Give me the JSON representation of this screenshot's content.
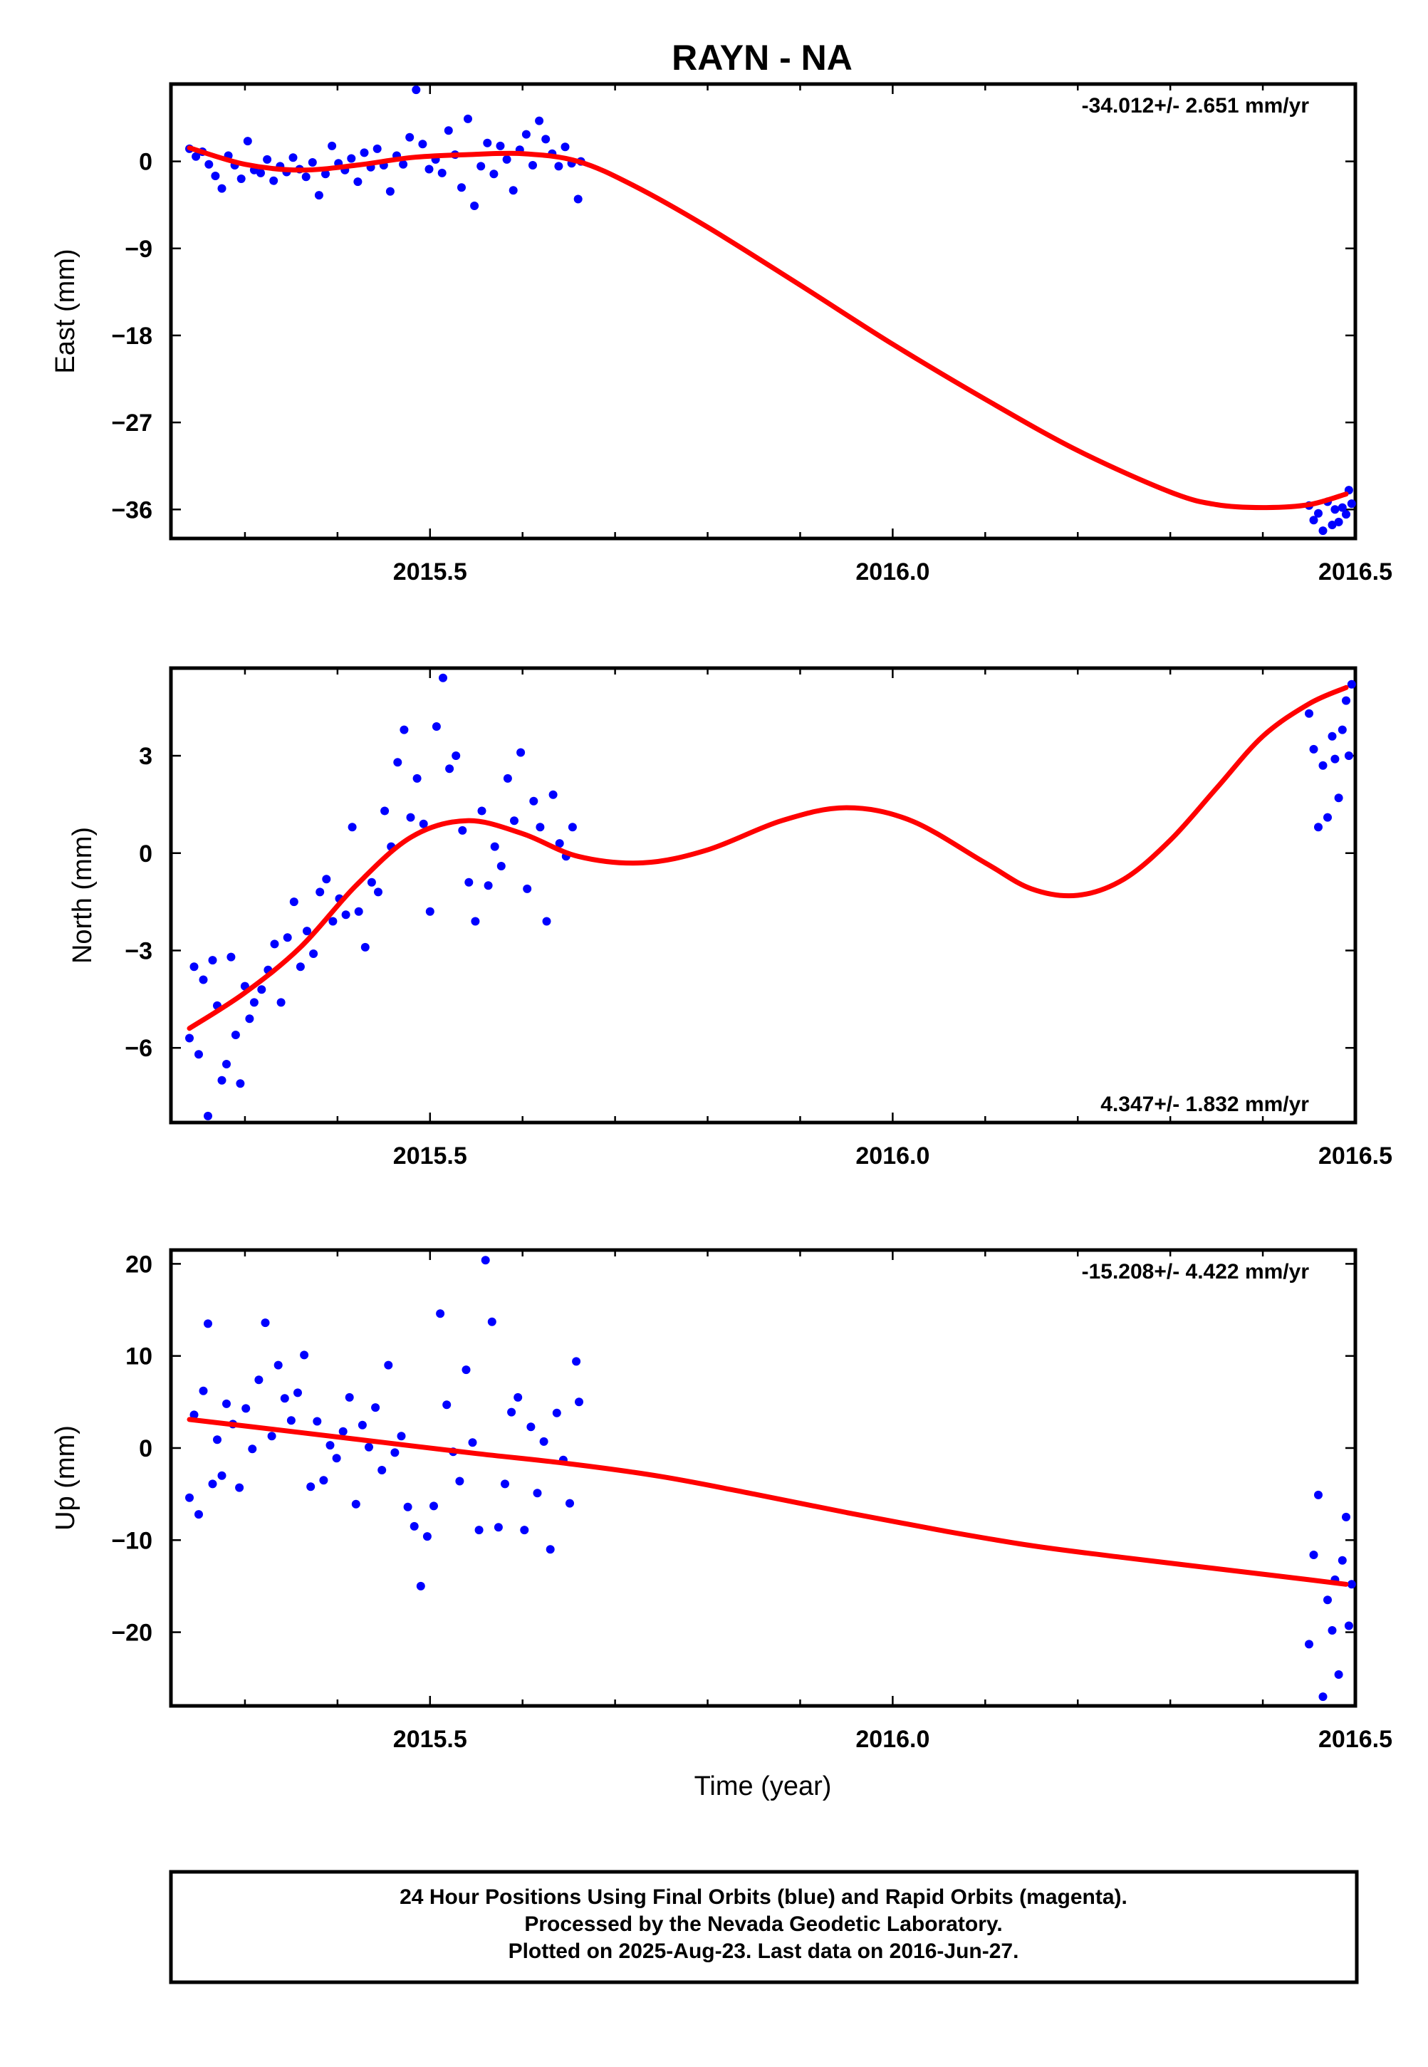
{
  "title": "RAYN - NA",
  "colors": {
    "points": "#0000ff",
    "fit": "#ff0000",
    "axes": "#000000"
  },
  "x_axis": {
    "label": "Time (year)",
    "range": [
      2015.22,
      2016.5
    ],
    "major_ticks": [
      2015.5,
      2016.0,
      2016.5
    ],
    "tick_labels": [
      "2015.5",
      "2016.0",
      "2016.5"
    ]
  },
  "footer": {
    "line1": "24 Hour Positions Using Final Orbits (blue) and Rapid Orbits (magenta).",
    "line2": "Processed by the Nevada Geodetic Laboratory.",
    "line3": "Plotted on 2025-Aug-23. Last data on 2016-Jun-27."
  },
  "chart_data": [
    {
      "type": "scatter",
      "name": "east",
      "ylabel": "East (mm)",
      "ylim": [
        -39,
        8
      ],
      "yticks": [
        0,
        -9,
        -18,
        -27,
        -36
      ],
      "rate_text": "-34.012+/- 2.651 mm/yr",
      "rate_position": "top-right",
      "fit": {
        "x": [
          2015.24,
          2015.3,
          2015.36,
          2015.42,
          2015.48,
          2015.54,
          2015.6,
          2015.66,
          2015.72,
          2015.8,
          2015.9,
          2016.0,
          2016.1,
          2016.2,
          2016.3,
          2016.35,
          2016.4,
          2016.45,
          2016.49
        ],
        "y": [
          1.4,
          -0.3,
          -0.9,
          -0.4,
          0.4,
          0.7,
          0.8,
          0.0,
          -2.5,
          -6.8,
          -12.8,
          -18.9,
          -24.6,
          -29.9,
          -34.2,
          -35.5,
          -35.8,
          -35.5,
          -34.4
        ]
      },
      "points": [
        {
          "x": 2015.24,
          "y": 1.3
        },
        {
          "x": 2015.247,
          "y": 0.5
        },
        {
          "x": 2015.254,
          "y": 1.0
        },
        {
          "x": 2015.261,
          "y": -0.3
        },
        {
          "x": 2015.268,
          "y": -1.5
        },
        {
          "x": 2015.275,
          "y": -2.8
        },
        {
          "x": 2015.282,
          "y": 0.6
        },
        {
          "x": 2015.289,
          "y": -0.4
        },
        {
          "x": 2015.296,
          "y": -1.8
        },
        {
          "x": 2015.303,
          "y": 2.1
        },
        {
          "x": 2015.31,
          "y": -0.9
        },
        {
          "x": 2015.317,
          "y": -1.2
        },
        {
          "x": 2015.324,
          "y": 0.2
        },
        {
          "x": 2015.331,
          "y": -2.0
        },
        {
          "x": 2015.338,
          "y": -0.5
        },
        {
          "x": 2015.345,
          "y": -1.1
        },
        {
          "x": 2015.352,
          "y": 0.4
        },
        {
          "x": 2015.359,
          "y": -0.8
        },
        {
          "x": 2015.366,
          "y": -1.6
        },
        {
          "x": 2015.373,
          "y": -0.1
        },
        {
          "x": 2015.38,
          "y": -3.5
        },
        {
          "x": 2015.387,
          "y": -1.3
        },
        {
          "x": 2015.394,
          "y": 1.6
        },
        {
          "x": 2015.401,
          "y": -0.2
        },
        {
          "x": 2015.408,
          "y": -0.9
        },
        {
          "x": 2015.415,
          "y": 0.3
        },
        {
          "x": 2015.422,
          "y": -2.1
        },
        {
          "x": 2015.429,
          "y": 0.9
        },
        {
          "x": 2015.436,
          "y": -0.6
        },
        {
          "x": 2015.443,
          "y": 1.3
        },
        {
          "x": 2015.45,
          "y": -0.4
        },
        {
          "x": 2015.457,
          "y": -3.1
        },
        {
          "x": 2015.464,
          "y": 0.6
        },
        {
          "x": 2015.471,
          "y": -0.3
        },
        {
          "x": 2015.478,
          "y": 2.5
        },
        {
          "x": 2015.485,
          "y": 7.4
        },
        {
          "x": 2015.492,
          "y": 1.8
        },
        {
          "x": 2015.499,
          "y": -0.8
        },
        {
          "x": 2015.506,
          "y": 0.2
        },
        {
          "x": 2015.513,
          "y": -1.2
        },
        {
          "x": 2015.52,
          "y": 3.2
        },
        {
          "x": 2015.527,
          "y": 0.7
        },
        {
          "x": 2015.534,
          "y": -2.7
        },
        {
          "x": 2015.541,
          "y": 4.4
        },
        {
          "x": 2015.548,
          "y": -4.6
        },
        {
          "x": 2015.555,
          "y": -0.5
        },
        {
          "x": 2015.562,
          "y": 1.9
        },
        {
          "x": 2015.569,
          "y": -1.3
        },
        {
          "x": 2015.576,
          "y": 1.6
        },
        {
          "x": 2015.583,
          "y": 0.2
        },
        {
          "x": 2015.59,
          "y": -3.0
        },
        {
          "x": 2015.597,
          "y": 1.2
        },
        {
          "x": 2015.604,
          "y": 2.8
        },
        {
          "x": 2015.611,
          "y": -0.4
        },
        {
          "x": 2015.618,
          "y": 4.2
        },
        {
          "x": 2015.625,
          "y": 2.3
        },
        {
          "x": 2015.632,
          "y": 0.8
        },
        {
          "x": 2015.639,
          "y": -0.5
        },
        {
          "x": 2015.646,
          "y": 1.5
        },
        {
          "x": 2015.653,
          "y": -0.2
        },
        {
          "x": 2015.66,
          "y": -3.9
        },
        {
          "x": 2015.663,
          "y": 0.0
        },
        {
          "x": 2016.45,
          "y": -35.6
        },
        {
          "x": 2016.455,
          "y": -37.1
        },
        {
          "x": 2016.46,
          "y": -36.4
        },
        {
          "x": 2016.465,
          "y": -38.2
        },
        {
          "x": 2016.47,
          "y": -35.2
        },
        {
          "x": 2016.475,
          "y": -37.6
        },
        {
          "x": 2016.478,
          "y": -36.0
        },
        {
          "x": 2016.482,
          "y": -37.3
        },
        {
          "x": 2016.486,
          "y": -35.8
        },
        {
          "x": 2016.49,
          "y": -36.5
        },
        {
          "x": 2016.493,
          "y": -34.0
        },
        {
          "x": 2016.496,
          "y": -35.4
        }
      ]
    },
    {
      "type": "scatter",
      "name": "north",
      "ylabel": "North (mm)",
      "ylim": [
        -8.3,
        5.7
      ],
      "yticks": [
        3,
        0,
        -3,
        -6
      ],
      "rate_text": "4.347+/- 1.832 mm/yr",
      "rate_position": "bottom-right",
      "fit": {
        "x": [
          2015.24,
          2015.3,
          2015.36,
          2015.42,
          2015.48,
          2015.54,
          2015.6,
          2015.66,
          2015.73,
          2015.8,
          2015.88,
          2015.95,
          2016.02,
          2016.1,
          2016.15,
          2016.2,
          2016.25,
          2016.3,
          2016.35,
          2016.4,
          2016.45,
          2016.49
        ],
        "y": [
          -5.4,
          -4.3,
          -2.9,
          -1.0,
          0.5,
          1.0,
          0.6,
          -0.1,
          -0.3,
          0.1,
          1.0,
          1.4,
          1.0,
          -0.3,
          -1.1,
          -1.3,
          -0.8,
          0.4,
          2.0,
          3.6,
          4.6,
          5.1
        ]
      },
      "points": [
        {
          "x": 2015.24,
          "y": -5.7
        },
        {
          "x": 2015.245,
          "y": -3.5
        },
        {
          "x": 2015.25,
          "y": -6.2
        },
        {
          "x": 2015.255,
          "y": -3.9
        },
        {
          "x": 2015.26,
          "y": -8.1
        },
        {
          "x": 2015.265,
          "y": -3.3
        },
        {
          "x": 2015.27,
          "y": -4.7
        },
        {
          "x": 2015.275,
          "y": -7.0
        },
        {
          "x": 2015.28,
          "y": -6.5
        },
        {
          "x": 2015.285,
          "y": -3.2
        },
        {
          "x": 2015.29,
          "y": -5.6
        },
        {
          "x": 2015.295,
          "y": -7.1
        },
        {
          "x": 2015.3,
          "y": -4.1
        },
        {
          "x": 2015.305,
          "y": -5.1
        },
        {
          "x": 2015.31,
          "y": -4.6
        },
        {
          "x": 2015.318,
          "y": -4.2
        },
        {
          "x": 2015.325,
          "y": -3.6
        },
        {
          "x": 2015.332,
          "y": -2.8
        },
        {
          "x": 2015.339,
          "y": -4.6
        },
        {
          "x": 2015.346,
          "y": -2.6
        },
        {
          "x": 2015.353,
          "y": -1.5
        },
        {
          "x": 2015.36,
          "y": -3.5
        },
        {
          "x": 2015.367,
          "y": -2.4
        },
        {
          "x": 2015.374,
          "y": -3.1
        },
        {
          "x": 2015.381,
          "y": -1.2
        },
        {
          "x": 2015.388,
          "y": -0.8
        },
        {
          "x": 2015.395,
          "y": -2.1
        },
        {
          "x": 2015.402,
          "y": -1.4
        },
        {
          "x": 2015.409,
          "y": -1.9
        },
        {
          "x": 2015.416,
          "y": 0.8
        },
        {
          "x": 2015.423,
          "y": -1.8
        },
        {
          "x": 2015.43,
          "y": -2.9
        },
        {
          "x": 2015.437,
          "y": -0.9
        },
        {
          "x": 2015.444,
          "y": -1.2
        },
        {
          "x": 2015.451,
          "y": 1.3
        },
        {
          "x": 2015.458,
          "y": 0.2
        },
        {
          "x": 2015.465,
          "y": 2.8
        },
        {
          "x": 2015.472,
          "y": 3.8
        },
        {
          "x": 2015.479,
          "y": 1.1
        },
        {
          "x": 2015.486,
          "y": 2.3
        },
        {
          "x": 2015.493,
          "y": 0.9
        },
        {
          "x": 2015.5,
          "y": -1.8
        },
        {
          "x": 2015.507,
          "y": 3.9
        },
        {
          "x": 2015.514,
          "y": 5.4
        },
        {
          "x": 2015.521,
          "y": 2.6
        },
        {
          "x": 2015.528,
          "y": 3.0
        },
        {
          "x": 2015.535,
          "y": 0.7
        },
        {
          "x": 2015.542,
          "y": -0.9
        },
        {
          "x": 2015.549,
          "y": -2.1
        },
        {
          "x": 2015.556,
          "y": 1.3
        },
        {
          "x": 2015.563,
          "y": -1.0
        },
        {
          "x": 2015.57,
          "y": 0.2
        },
        {
          "x": 2015.577,
          "y": -0.4
        },
        {
          "x": 2015.584,
          "y": 2.3
        },
        {
          "x": 2015.591,
          "y": 1.0
        },
        {
          "x": 2015.598,
          "y": 3.1
        },
        {
          "x": 2015.605,
          "y": -1.1
        },
        {
          "x": 2015.612,
          "y": 1.6
        },
        {
          "x": 2015.619,
          "y": 0.8
        },
        {
          "x": 2015.626,
          "y": -2.1
        },
        {
          "x": 2015.633,
          "y": 1.8
        },
        {
          "x": 2015.64,
          "y": 0.3
        },
        {
          "x": 2015.647,
          "y": -0.1
        },
        {
          "x": 2015.654,
          "y": 0.8
        },
        {
          "x": 2016.45,
          "y": 4.3
        },
        {
          "x": 2016.455,
          "y": 3.2
        },
        {
          "x": 2016.46,
          "y": 0.8
        },
        {
          "x": 2016.465,
          "y": 2.7
        },
        {
          "x": 2016.47,
          "y": 1.1
        },
        {
          "x": 2016.475,
          "y": 3.6
        },
        {
          "x": 2016.478,
          "y": 2.9
        },
        {
          "x": 2016.482,
          "y": 1.7
        },
        {
          "x": 2016.486,
          "y": 3.8
        },
        {
          "x": 2016.49,
          "y": 4.7
        },
        {
          "x": 2016.493,
          "y": 3.0
        },
        {
          "x": 2016.496,
          "y": 5.2
        }
      ]
    },
    {
      "type": "scatter",
      "name": "up",
      "ylabel": "Up (mm)",
      "ylim": [
        -28,
        21.5
      ],
      "yticks": [
        20,
        10,
        0,
        -10,
        -20
      ],
      "rate_text": "-15.208+/- 4.422 mm/yr",
      "rate_position": "top-right",
      "fit": {
        "x": [
          2015.24,
          2015.35,
          2015.45,
          2015.55,
          2015.65,
          2015.75,
          2015.85,
          2015.95,
          2016.05,
          2016.15,
          2016.25,
          2016.35,
          2016.45,
          2016.49
        ],
        "y": [
          3.1,
          1.8,
          0.6,
          -0.6,
          -1.7,
          -3.1,
          -5.0,
          -7.0,
          -8.9,
          -10.6,
          -11.9,
          -13.1,
          -14.3,
          -14.8
        ]
      },
      "points": [
        {
          "x": 2015.24,
          "y": -5.4
        },
        {
          "x": 2015.245,
          "y": 3.6
        },
        {
          "x": 2015.25,
          "y": -7.2
        },
        {
          "x": 2015.255,
          "y": 6.2
        },
        {
          "x": 2015.26,
          "y": 13.5
        },
        {
          "x": 2015.265,
          "y": -3.9
        },
        {
          "x": 2015.27,
          "y": 0.9
        },
        {
          "x": 2015.275,
          "y": -3.0
        },
        {
          "x": 2015.28,
          "y": 4.8
        },
        {
          "x": 2015.287,
          "y": 2.6
        },
        {
          "x": 2015.294,
          "y": -4.3
        },
        {
          "x": 2015.301,
          "y": 4.3
        },
        {
          "x": 2015.308,
          "y": -0.1
        },
        {
          "x": 2015.315,
          "y": 7.4
        },
        {
          "x": 2015.322,
          "y": 13.6
        },
        {
          "x": 2015.329,
          "y": 1.3
        },
        {
          "x": 2015.336,
          "y": 9.0
        },
        {
          "x": 2015.343,
          "y": 5.4
        },
        {
          "x": 2015.35,
          "y": 3.0
        },
        {
          "x": 2015.357,
          "y": 6.0
        },
        {
          "x": 2015.364,
          "y": 10.1
        },
        {
          "x": 2015.371,
          "y": -4.2
        },
        {
          "x": 2015.378,
          "y": 2.9
        },
        {
          "x": 2015.385,
          "y": -3.5
        },
        {
          "x": 2015.392,
          "y": 0.3
        },
        {
          "x": 2015.399,
          "y": -1.1
        },
        {
          "x": 2015.406,
          "y": 1.8
        },
        {
          "x": 2015.413,
          "y": 5.5
        },
        {
          "x": 2015.42,
          "y": -6.1
        },
        {
          "x": 2015.427,
          "y": 2.5
        },
        {
          "x": 2015.434,
          "y": 0.1
        },
        {
          "x": 2015.441,
          "y": 4.4
        },
        {
          "x": 2015.448,
          "y": -2.4
        },
        {
          "x": 2015.455,
          "y": 9.0
        },
        {
          "x": 2015.462,
          "y": -0.5
        },
        {
          "x": 2015.469,
          "y": 1.3
        },
        {
          "x": 2015.476,
          "y": -6.4
        },
        {
          "x": 2015.483,
          "y": -8.5
        },
        {
          "x": 2015.49,
          "y": -15.0
        },
        {
          "x": 2015.497,
          "y": -9.6
        },
        {
          "x": 2015.504,
          "y": -6.3
        },
        {
          "x": 2015.511,
          "y": 14.6
        },
        {
          "x": 2015.518,
          "y": 4.7
        },
        {
          "x": 2015.525,
          "y": -0.4
        },
        {
          "x": 2015.532,
          "y": -3.6
        },
        {
          "x": 2015.539,
          "y": 8.5
        },
        {
          "x": 2015.546,
          "y": 0.6
        },
        {
          "x": 2015.553,
          "y": -8.9
        },
        {
          "x": 2015.56,
          "y": 20.4
        },
        {
          "x": 2015.567,
          "y": 13.7
        },
        {
          "x": 2015.574,
          "y": -8.6
        },
        {
          "x": 2015.581,
          "y": -3.9
        },
        {
          "x": 2015.588,
          "y": 3.9
        },
        {
          "x": 2015.595,
          "y": 5.5
        },
        {
          "x": 2015.602,
          "y": -8.9
        },
        {
          "x": 2015.609,
          "y": 2.3
        },
        {
          "x": 2015.616,
          "y": -4.9
        },
        {
          "x": 2015.623,
          "y": 0.7
        },
        {
          "x": 2015.63,
          "y": -11.0
        },
        {
          "x": 2015.637,
          "y": 3.8
        },
        {
          "x": 2015.644,
          "y": -1.3
        },
        {
          "x": 2015.651,
          "y": -6.0
        },
        {
          "x": 2015.658,
          "y": 9.4
        },
        {
          "x": 2015.661,
          "y": 5.0
        },
        {
          "x": 2016.45,
          "y": -21.3
        },
        {
          "x": 2016.455,
          "y": -11.6
        },
        {
          "x": 2016.46,
          "y": -5.1
        },
        {
          "x": 2016.465,
          "y": -27.0
        },
        {
          "x": 2016.47,
          "y": -16.5
        },
        {
          "x": 2016.475,
          "y": -19.8
        },
        {
          "x": 2016.478,
          "y": -14.3
        },
        {
          "x": 2016.482,
          "y": -24.6
        },
        {
          "x": 2016.486,
          "y": -12.2
        },
        {
          "x": 2016.49,
          "y": -7.5
        },
        {
          "x": 2016.493,
          "y": -19.3
        },
        {
          "x": 2016.496,
          "y": -14.8
        }
      ]
    }
  ]
}
